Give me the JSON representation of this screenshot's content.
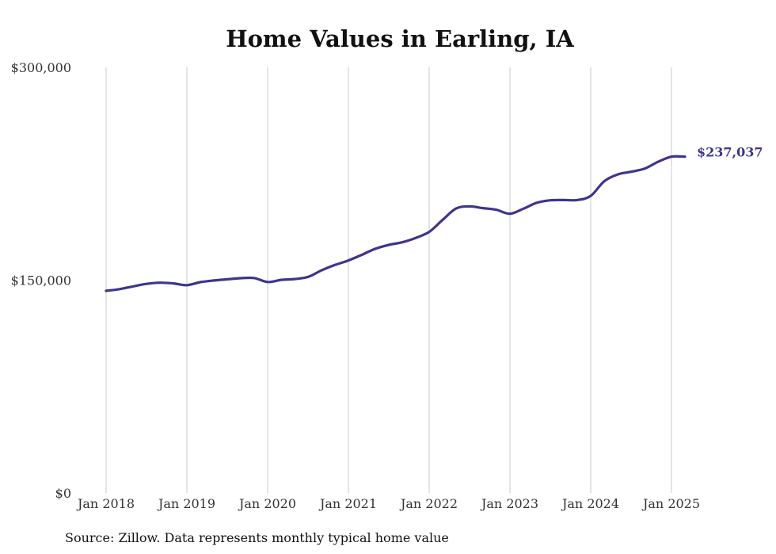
{
  "chart_data": {
    "type": "line",
    "title": "Home Values in Earling, IA",
    "source": "Source: Zillow. Data represents monthly typical home value",
    "ylim": [
      0,
      300000
    ],
    "y_ticks": [
      {
        "value": 0,
        "label": "$0"
      },
      {
        "value": 150000,
        "label": "$150,000"
      },
      {
        "value": 300000,
        "label": "$300,000"
      }
    ],
    "x_ticks": [
      {
        "value": "2018-01",
        "label": "Jan 2018"
      },
      {
        "value": "2019-01",
        "label": "Jan 2019"
      },
      {
        "value": "2020-01",
        "label": "Jan 2020"
      },
      {
        "value": "2021-01",
        "label": "Jan 2021"
      },
      {
        "value": "2022-01",
        "label": "Jan 2022"
      },
      {
        "value": "2023-01",
        "label": "Jan 2023"
      },
      {
        "value": "2024-01",
        "label": "Jan 2024"
      },
      {
        "value": "2025-01",
        "label": "Jan 2025"
      }
    ],
    "grid": {
      "vertical": true,
      "horizontal": false
    },
    "line_color": "#3d3590",
    "end_label": "$237,037",
    "series": [
      {
        "x": [
          "2018-01",
          "2018-03",
          "2018-05",
          "2018-07",
          "2018-09",
          "2018-11",
          "2019-01",
          "2019-03",
          "2019-05",
          "2019-07",
          "2019-09",
          "2019-11",
          "2020-01",
          "2020-03",
          "2020-05",
          "2020-07",
          "2020-09",
          "2020-11",
          "2021-01",
          "2021-03",
          "2021-05",
          "2021-07",
          "2021-09",
          "2021-11",
          "2022-01",
          "2022-03",
          "2022-05",
          "2022-07",
          "2022-09",
          "2022-11",
          "2023-01",
          "2023-03",
          "2023-05",
          "2023-07",
          "2023-09",
          "2023-11",
          "2024-01",
          "2024-03",
          "2024-05",
          "2024-07",
          "2024-09",
          "2024-11",
          "2025-01",
          "2025-03"
        ],
        "values": [
          142500,
          143700,
          145600,
          147400,
          148200,
          147700,
          146500,
          148600,
          149800,
          150600,
          151400,
          151500,
          148700,
          150200,
          150800,
          152300,
          156900,
          160700,
          163900,
          167900,
          172100,
          174900,
          176700,
          179800,
          184000,
          192500,
          200500,
          202000,
          200800,
          199600,
          196800,
          200400,
          204600,
          206300,
          206500,
          206500,
          209400,
          219700,
          224500,
          226400,
          228600,
          233400,
          237037,
          237037
        ]
      }
    ]
  }
}
